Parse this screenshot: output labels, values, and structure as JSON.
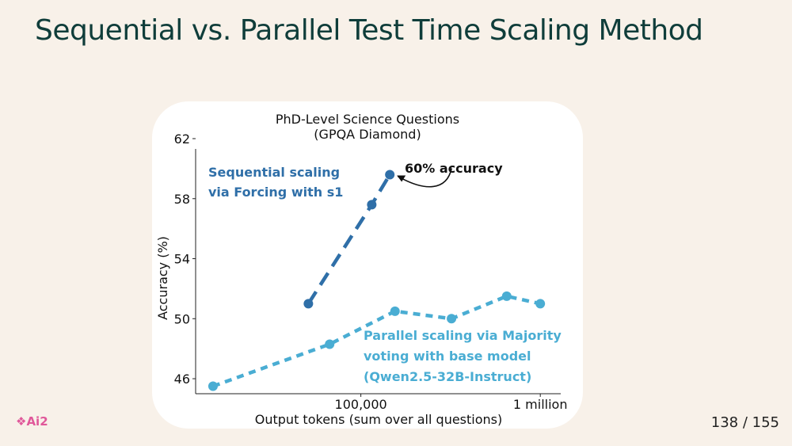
{
  "slide": {
    "title": "Sequential vs. Parallel Test Time Scaling Method",
    "logo": "❖Ai2",
    "page_number": "138 / 155"
  },
  "colors": {
    "sequential": "#2f6fa8",
    "parallel": "#4aadd3",
    "background": "#f8f1e9",
    "title": "#0f3d3a"
  },
  "chart_data": {
    "type": "line",
    "title": "PhD-Level Science Questions",
    "subtitle": "(GPQA Diamond)",
    "xlabel": "Output tokens (sum over all questions)",
    "ylabel": "Accuracy (%)",
    "x_scale": "log",
    "xlim": [
      12000,
      1300000
    ],
    "ylim": [
      45,
      62
    ],
    "x_ticks": [
      {
        "value": 100000,
        "label": "100,000"
      },
      {
        "value": 1000000,
        "label": "1 million"
      }
    ],
    "y_ticks": [
      {
        "value": 46,
        "label": "46"
      },
      {
        "value": 50,
        "label": "50"
      },
      {
        "value": 54,
        "label": "54"
      },
      {
        "value": 58,
        "label": "58"
      },
      {
        "value": 62,
        "label": "62"
      }
    ],
    "series": [
      {
        "name": "Sequential scaling via Forcing with s1",
        "label_lines": [
          "Sequential scaling",
          "via Forcing with s1"
        ],
        "style": "long-dash",
        "x": [
          51000,
          115000,
          145000
        ],
        "y": [
          51.0,
          57.6,
          59.6
        ]
      },
      {
        "name": "Parallel scaling via Majority voting with base model (Qwen2.5-32B-Instruct)",
        "label_lines": [
          "Parallel scaling via Majority",
          "voting with base model",
          "(Qwen2.5-32B-Instruct)"
        ],
        "style": "short-dash",
        "x": [
          15000,
          67000,
          155000,
          320000,
          650000,
          1000000
        ],
        "y": [
          45.5,
          48.3,
          50.5,
          50.0,
          51.5,
          51.0
        ]
      }
    ],
    "annotations": [
      {
        "text": "60% accuracy",
        "x": 145000,
        "y": 59.6
      }
    ],
    "grid": false,
    "legend": "none"
  }
}
